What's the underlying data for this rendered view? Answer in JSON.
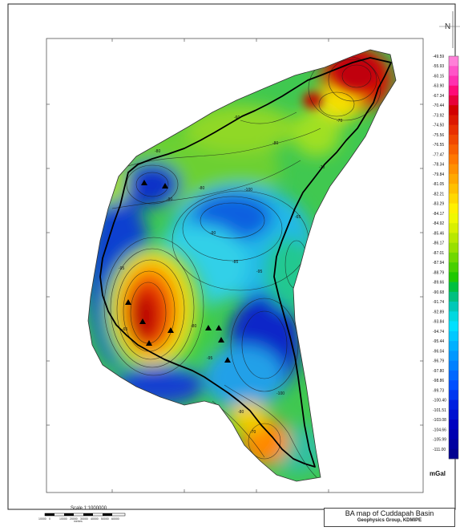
{
  "map": {
    "title": "BA map of Cuddapah Basin",
    "subtitle": "Geophysics Group, KDMIPE",
    "north": "N",
    "scale_label": "Scale 1:1000000",
    "colors": {
      "frame": "#000000",
      "background": "#ffffff"
    }
  },
  "contour_labels": [
    "-60",
    "-80",
    "-70",
    "-80",
    "-100",
    "-80",
    "-90",
    "-85",
    "-95",
    "-95",
    "-90",
    "-100",
    "-80",
    "-70",
    "-65",
    "-70",
    "-95",
    "-80",
    "-65"
  ],
  "legend": {
    "unit": "mGal",
    "values": [
      "-49.59",
      "-55.93",
      "-60.15",
      "-63.90",
      "-67.34",
      "-70.44",
      "-73.92",
      "-74.50",
      "-75.56",
      "-76.55",
      "-77.47",
      "-78.34",
      "-79.84",
      "-81.05",
      "-82.21",
      "-83.29",
      "-84.17",
      "-84.92",
      "-85.46",
      "-86.17",
      "-87.01",
      "-87.94",
      "-88.79",
      "-89.66",
      "-90.68",
      "-91.74",
      "-92.89",
      "-93.84",
      "-94.74",
      "-95.44",
      "-96.04",
      "-96.79",
      "-97.80",
      "-98.86",
      "-99.73",
      "-100.40",
      "-101.51",
      "-103.08",
      "-104.66",
      "-105.99",
      "-111.00"
    ],
    "colors": [
      "#ff80d8",
      "#ff55c8",
      "#ff30b0",
      "#ff0a78",
      "#e8003a",
      "#d20000",
      "#dc1800",
      "#e83000",
      "#f04800",
      "#f86000",
      "#ff7800",
      "#ff9000",
      "#ffa800",
      "#ffc000",
      "#ffd800",
      "#fff000",
      "#f0f800",
      "#d8f000",
      "#b8e800",
      "#98e000",
      "#70d800",
      "#48d000",
      "#20c800",
      "#00c040",
      "#00c080",
      "#00c8b8",
      "#00d8e0",
      "#00e0ff",
      "#00c8ff",
      "#00b0ff",
      "#0098ff",
      "#0080ff",
      "#0068ff",
      "#0050ff",
      "#0038f0",
      "#0020e0",
      "#0010d0",
      "#0000c0",
      "#0000b0",
      "#0000a0",
      "#000090"
    ]
  },
  "symbols": {
    "triangles": 10
  },
  "scale_bar": {
    "ticks": [
      "10000",
      "0",
      "10000",
      "20000",
      "30000",
      "40000",
      "50000",
      "60000"
    ],
    "note": "metres"
  }
}
